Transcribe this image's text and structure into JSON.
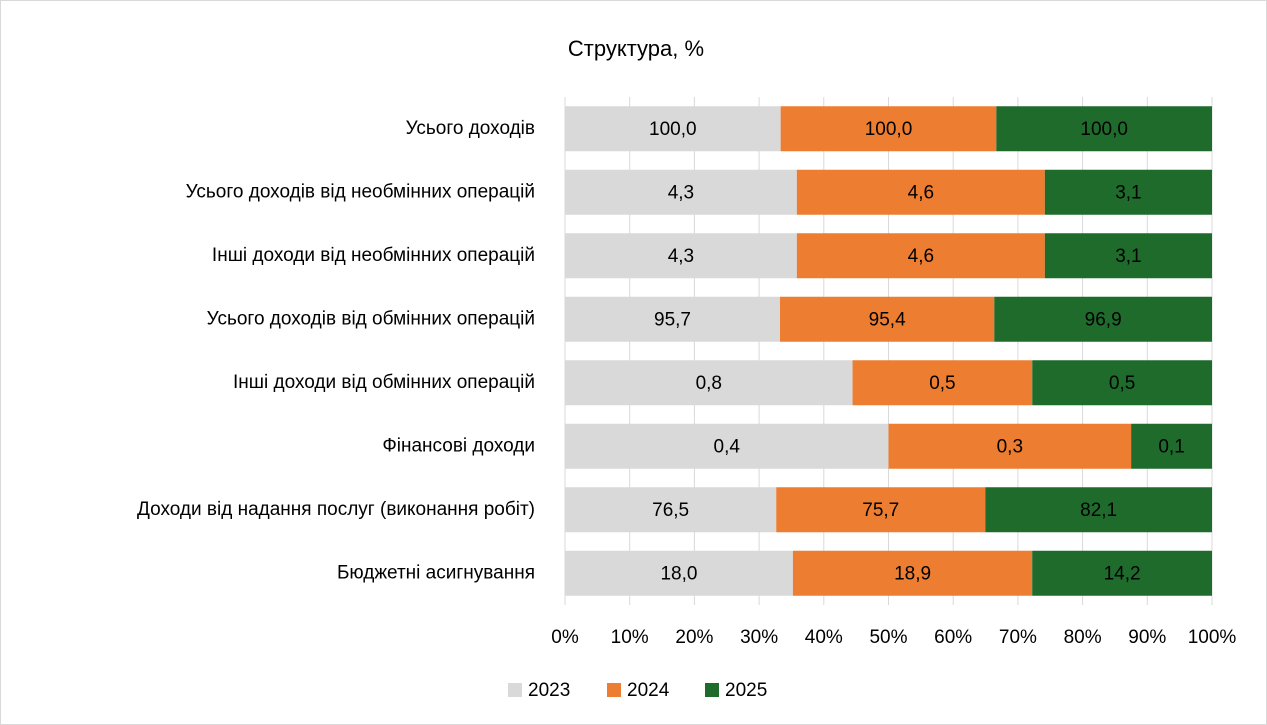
{
  "chart_data": {
    "type": "bar",
    "orientation": "horizontal",
    "stacking": "percent",
    "title": "Структура, %",
    "categories": [
      "Усього доходів",
      "Усього доходів від необмінних операцій",
      "Інші доходи від необмінних операцій",
      "Усього доходів від обмінних операцій",
      "Інші доходи від обмінних операцій",
      "Фінансові доходи",
      "Доходи від надання послуг (виконання робіт)",
      "Бюджетні асигнування"
    ],
    "series": [
      {
        "name": "2023",
        "color": "#d9d9d9",
        "values": [
          100.0,
          4.3,
          4.3,
          95.7,
          0.8,
          0.4,
          76.5,
          18.0
        ],
        "value_labels": [
          "100,0",
          "4,3",
          "4,3",
          "95,7",
          "0,8",
          "0,4",
          "76,5",
          "18,0"
        ]
      },
      {
        "name": "2024",
        "color": "#ed7d31",
        "values": [
          100.0,
          4.6,
          4.6,
          95.4,
          0.5,
          0.3,
          75.7,
          18.9
        ],
        "value_labels": [
          "100,0",
          "4,6",
          "4,6",
          "95,4",
          "0,5",
          "0,3",
          "75,7",
          "18,9"
        ]
      },
      {
        "name": "2025",
        "color": "#1e6b2c",
        "values": [
          100.0,
          3.1,
          3.1,
          96.9,
          0.5,
          0.1,
          82.1,
          14.2
        ],
        "value_labels": [
          "100,0",
          "3,1",
          "3,1",
          "96,9",
          "0,5",
          "0,1",
          "82,1",
          "14,2"
        ]
      }
    ],
    "xlim": [
      0,
      100
    ],
    "xticks": [
      {
        "value": 0,
        "label": "0%"
      },
      {
        "value": 10,
        "label": "10%"
      },
      {
        "value": 20,
        "label": "20%"
      },
      {
        "value": 30,
        "label": "30%"
      },
      {
        "value": 40,
        "label": "40%"
      },
      {
        "value": 50,
        "label": "50%"
      },
      {
        "value": 60,
        "label": "60%"
      },
      {
        "value": 70,
        "label": "70%"
      },
      {
        "value": 80,
        "label": "80%"
      },
      {
        "value": 90,
        "label": "90%"
      },
      {
        "value": 100,
        "label": "100%"
      }
    ],
    "grid": true,
    "legend": "bottom"
  }
}
